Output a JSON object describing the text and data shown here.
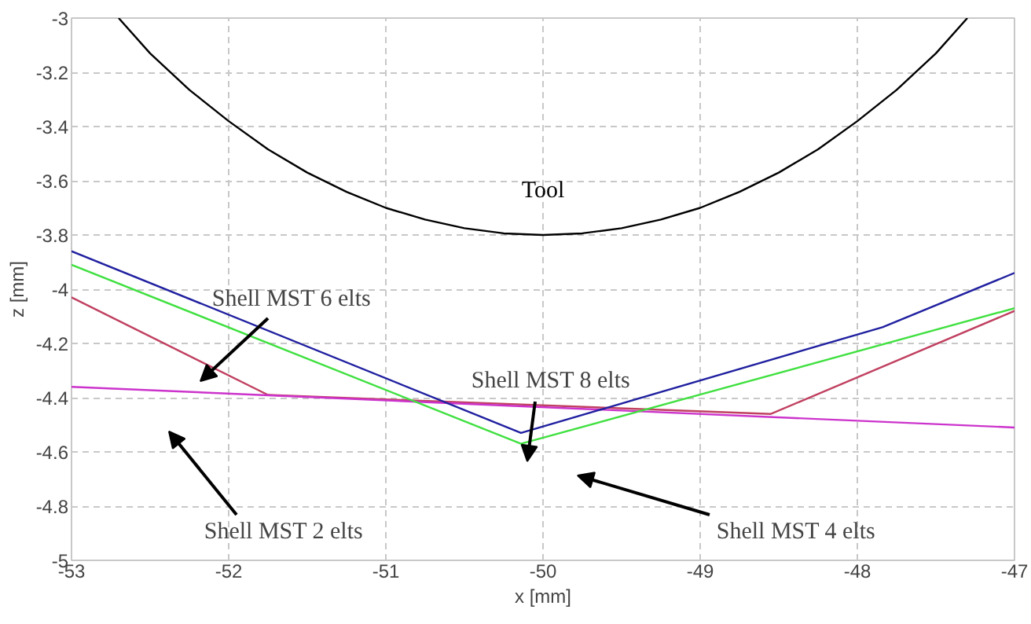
{
  "chart_data": {
    "type": "line",
    "xlabel": "x [mm]",
    "ylabel": "z [mm]",
    "xlim": [
      -53,
      -47
    ],
    "ylim": [
      -5,
      -3
    ],
    "xticks": [
      -53,
      -52,
      -51,
      -50,
      -49,
      -48,
      -47
    ],
    "yticks": [
      -5,
      -4.8,
      -4.6,
      -4.4,
      -4.2,
      -4,
      -3.8,
      -3.6,
      -3.4,
      -3.2,
      -3
    ],
    "grid": true,
    "marker": "none",
    "line_style": "solid",
    "series": [
      {
        "name": "Tool",
        "color": "#000000",
        "x": [
          -52.7,
          -52.5,
          -52.25,
          -52,
          -51.75,
          -51.5,
          -51.25,
          -51,
          -50.75,
          -50.5,
          -50.25,
          -50,
          -49.75,
          -49.5,
          -49.25,
          -49,
          -48.75,
          -48.5,
          -48.25,
          -48,
          -47.75,
          -47.5,
          -47.3
        ],
        "values": [
          -3.0,
          -3.13,
          -3.265,
          -3.38,
          -3.484,
          -3.57,
          -3.641,
          -3.7,
          -3.743,
          -3.775,
          -3.794,
          -3.8,
          -3.794,
          -3.775,
          -3.743,
          -3.7,
          -3.641,
          -3.57,
          -3.484,
          -3.38,
          -3.265,
          -3.13,
          -3.0
        ]
      },
      {
        "color": "#c04060",
        "x": [
          -53,
          -51.75,
          -48.55,
          -47
        ],
        "values": [
          -4.03,
          -4.39,
          -4.46,
          -4.08
        ]
      },
      {
        "color": "#cc33cc",
        "x": [
          -53,
          -47
        ],
        "values": [
          -4.36,
          -4.51
        ]
      },
      {
        "color": "#2020a0",
        "x": [
          -53,
          -50.14,
          -47.84,
          -47
        ],
        "values": [
          -3.86,
          -4.53,
          -4.14,
          -3.94
        ]
      },
      {
        "color": "#40e040",
        "x": [
          -53,
          -50.14,
          -47
        ],
        "values": [
          -3.91,
          -4.57,
          -4.07
        ]
      }
    ],
    "annotations": [
      "Shell MST 6 elts",
      "Shell MST 8 elts",
      "Shell MST 2 elts",
      "Shell MST 4 elts"
    ]
  }
}
